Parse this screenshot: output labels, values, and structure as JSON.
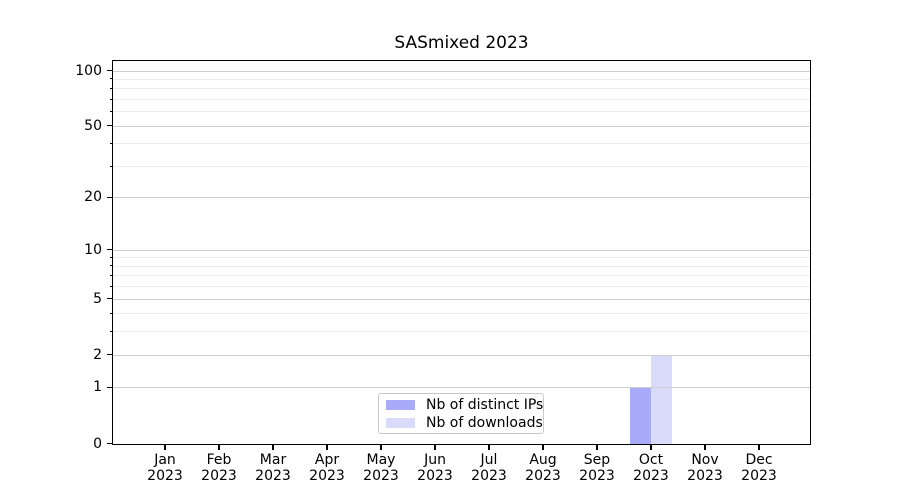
{
  "figure": {
    "background": "#ffffff",
    "text_color": "#000000"
  },
  "chart_data": {
    "type": "bar",
    "title": "SASmixed 2023",
    "categories": [
      "Jan 2023",
      "Feb 2023",
      "Mar 2023",
      "Apr 2023",
      "May 2023",
      "Jun 2023",
      "Jul 2023",
      "Aug 2023",
      "Sep 2023",
      "Oct 2023",
      "Nov 2023",
      "Dec 2023"
    ],
    "series": [
      {
        "name": "Nb of distinct IPs",
        "color": "#aaaafa",
        "values": [
          0,
          0,
          0,
          0,
          0,
          0,
          0,
          0,
          0,
          1,
          0,
          0
        ]
      },
      {
        "name": "Nb of downloads",
        "color": "#dadafa",
        "values": [
          0,
          0,
          0,
          0,
          0,
          0,
          0,
          0,
          0,
          2,
          0,
          0
        ]
      }
    ],
    "xlabel": "",
    "ylabel": "",
    "yscale": "log1p",
    "ylim": [
      0,
      112
    ],
    "yticks_major": [
      0,
      1,
      2,
      5,
      10,
      20,
      50,
      100
    ],
    "yticks_minor": [
      3,
      4,
      6,
      7,
      8,
      9,
      30,
      40,
      60,
      70,
      80,
      90
    ],
    "grid": true,
    "legend_position": "inside bottom-center"
  }
}
